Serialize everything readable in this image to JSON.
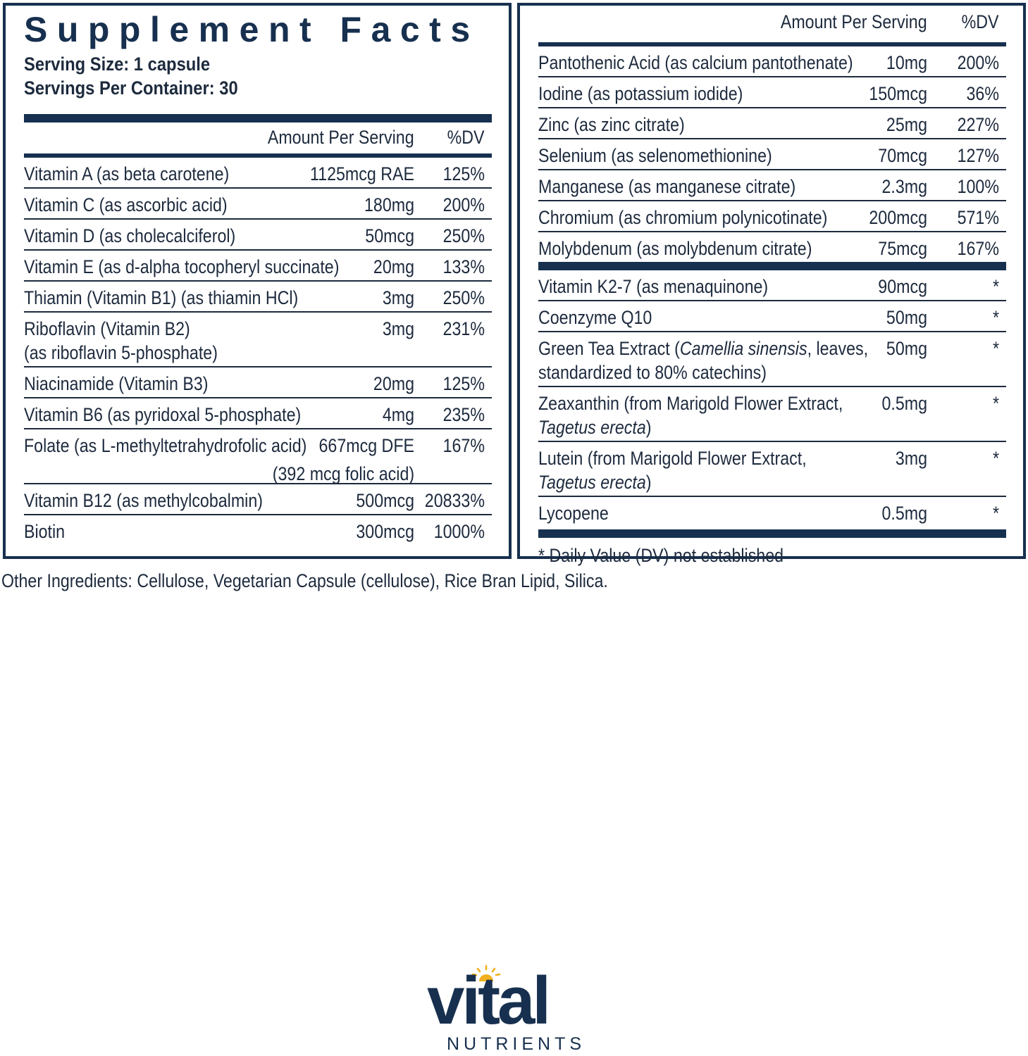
{
  "title": "Supplement Facts",
  "serving_size": "Serving Size: 1 capsule",
  "servings_per_container": "Servings Per Container: 30",
  "column_headers": {
    "amount": "Amount Per Serving",
    "dv": "%DV"
  },
  "left_rows": [
    {
      "name": [
        "Vitamin A (as beta carotene)"
      ],
      "amount": "1125mcg RAE",
      "dv": "125%"
    },
    {
      "name": [
        "Vitamin C (as ascorbic acid)"
      ],
      "amount": "180mg",
      "dv": "200%"
    },
    {
      "name": [
        "Vitamin D (as cholecalciferol)"
      ],
      "amount": "50mcg",
      "dv": "250%"
    },
    {
      "name": [
        "Vitamin E (as d-alpha tocopheryl succinate)"
      ],
      "amount": "20mg",
      "dv": "133%"
    },
    {
      "name": [
        "Thiamin (Vitamin B1) (as thiamin HCl)"
      ],
      "amount": "3mg",
      "dv": "250%"
    },
    {
      "name": [
        "Riboflavin (Vitamin B2)",
        "(as riboflavin 5-phosphate)"
      ],
      "amount": "3mg",
      "dv": "231%"
    },
    {
      "name": [
        "Niacinamide (Vitamin B3)"
      ],
      "amount": "20mg",
      "dv": "125%"
    },
    {
      "name": [
        "Vitamin B6 (as pyridoxal 5-phosphate)"
      ],
      "amount": "4mg",
      "dv": "235%"
    },
    {
      "name": [
        "Folate (as L-methyltetrahydrofolic acid)"
      ],
      "amount": "667mcg DFE",
      "amount_sub": "(392 mcg folic acid)",
      "dv": "167%"
    },
    {
      "name": [
        "Vitamin B12 (as methylcobalmin)"
      ],
      "amount": "500mcg",
      "dv": "20833%"
    },
    {
      "name": [
        "Biotin"
      ],
      "amount": "300mcg",
      "dv": "1000%"
    }
  ],
  "right_rows_a": [
    {
      "name": [
        "Pantothenic Acid (as calcium pantothenate)"
      ],
      "amount": "10mg",
      "dv": "200%"
    },
    {
      "name": [
        "Iodine (as potassium iodide)"
      ],
      "amount": "150mcg",
      "dv": "36%"
    },
    {
      "name": [
        "Zinc (as zinc citrate)"
      ],
      "amount": "25mg",
      "dv": "227%"
    },
    {
      "name": [
        "Selenium (as selenomethionine)"
      ],
      "amount": "70mcg",
      "dv": "127%"
    },
    {
      "name": [
        "Manganese (as manganese citrate)"
      ],
      "amount": "2.3mg",
      "dv": "100%"
    },
    {
      "name": [
        "Chromium (as chromium polynicotinate)"
      ],
      "amount": "200mcg",
      "dv": "571%"
    },
    {
      "name": [
        "Molybdenum (as molybdenum citrate)"
      ],
      "amount": "75mcg",
      "dv": "167%"
    }
  ],
  "right_rows_b": [
    {
      "name": [
        "Vitamin K2-7 (as menaquinone)"
      ],
      "amount": "90mcg",
      "dv": "*"
    },
    {
      "name": [
        "Coenzyme Q10"
      ],
      "amount": "50mg",
      "dv": "*"
    },
    {
      "name_html": [
        "Green Tea Extract (<i>Camellia sinensis</i>, leaves,",
        "standardized to 80% catechins)"
      ],
      "amount": "50mg",
      "dv": "*"
    },
    {
      "name_html": [
        "Zeaxanthin (from Marigold Flower Extract,",
        "<i>Tagetus erecta</i>)"
      ],
      "amount": "0.5mg",
      "dv": "*"
    },
    {
      "name_html": [
        "Lutein (from Marigold Flower Extract,",
        "<i>Tagetus erecta</i>)"
      ],
      "amount": "3mg",
      "dv": "*"
    },
    {
      "name": [
        "Lycopene"
      ],
      "amount": "0.5mg",
      "dv": "*"
    }
  ],
  "footnote": "* Daily Value (DV) not established",
  "other_ingredients": "Other Ingredients: Cellulose, Vegetarian Capsule (cellulose), Rice Bran Lipid, Silica.",
  "logo": {
    "word": "vital",
    "sub": "NUTRIENTS",
    "brand_color": "#17304f",
    "sun_color": "#f2b01e"
  }
}
